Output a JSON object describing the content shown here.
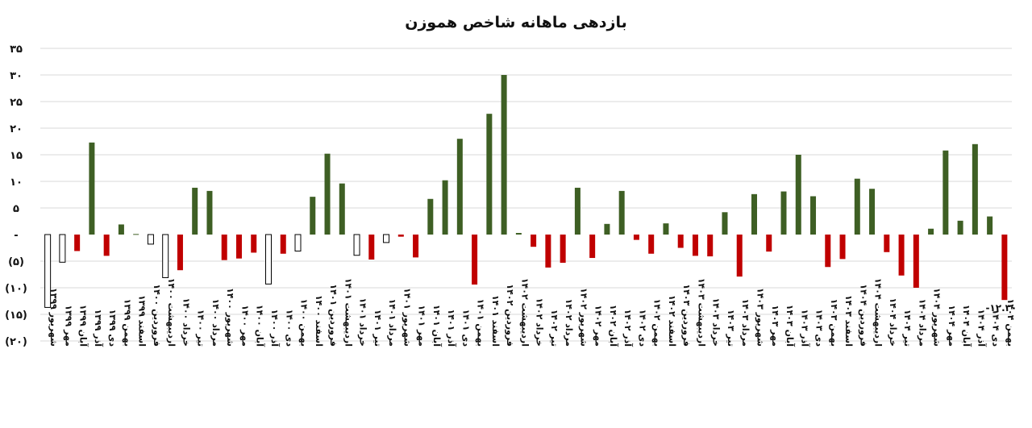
{
  "chart_data": {
    "type": "bar",
    "title": "بازدهی ماهانه شاخص هموزن",
    "ylim": [
      -20,
      35
    ],
    "yticks": [
      35,
      30,
      25,
      20,
      15,
      10,
      5,
      0,
      -5,
      -10,
      -15,
      -20
    ],
    "ytick_labels": [
      "۳۵",
      "۳۰",
      "۲۵",
      "۲۰",
      "۱۵",
      "۱۰",
      "۵",
      "-",
      "(۵)",
      "(۱۰)",
      "(۱۵)",
      "(۲۰)"
    ],
    "grid": true,
    "colors": {
      "positive": "#3e5f24",
      "negative": "#c00000",
      "outline": "#000000"
    },
    "categories": [
      "شهریور ۱۳۹۹",
      "مهر ۱۳۹۹",
      "آبان ۱۳۹۹",
      "آذر ۱۳۹۹",
      "دی ۱۳۹۹",
      "بهمن ۱۳۹۹",
      "اسفند ۱۳۹۹",
      "فروردین ۱۴۰۰",
      "اردیبهشت ۱۴۰۰",
      "خرداد ۱۴۰۰",
      "تیر ۱۴۰۰",
      "مرداد ۱۴۰۰",
      "شهریور ۱۴۰۰",
      "مهر ۱۴۰۰",
      "آبان ۱۴۰۰",
      "آذر ۱۴۰۰",
      "دی ۱۴۰۰",
      "بهمن ۱۴۰۰",
      "اسفند ۱۴۰۰",
      "فروردین ۱۴۰۱",
      "اردیبهشت ۱۴۰۱",
      "خرداد ۱۴۰۱",
      "تیر ۱۴۰۱",
      "مرداد ۱۴۰۱",
      "شهریور ۱۴۰۱",
      "مهر ۱۴۰۱",
      "آبان ۱۴۰۱",
      "آذر ۱۴۰۱",
      "دی ۱۴۰۱",
      "بهمن ۱۴۰۱",
      "اسفند ۱۴۰۱",
      "فروردین ۱۴۰۲",
      "اردیبهشت ۱۴۰۲",
      "خرداد ۱۴۰۲",
      "تیر ۱۴۰۲",
      "مرداد ۱۴۰۲",
      "شهریور ۱۴۰۲",
      "مهر ۱۴۰۲",
      "آبان ۱۴۰۲",
      "آذر ۱۴۰۲",
      "دی ۱۴۰۲",
      "بهمن ۱۴۰۲",
      "اسفند ۱۴۰۲",
      "فروردین ۱۴۰۳",
      "اردیبهشت ۱۴۰۳",
      "خرداد ۱۴۰۳",
      "تیر ۱۴۰۳",
      "مرداد ۱۴۰۳",
      "شهریور ۱۴۰۳",
      "مهر ۱۴۰۳",
      "آبان ۱۴۰۳",
      "آذر ۱۴۰۳",
      "دی ۱۴۰۳",
      "بهمن ۱۴۰۳",
      "اسفند ۱۴۰۳",
      "فروردین ۱۴۰۴",
      "اردیبهشت ۱۴۰۴",
      "خرداد ۱۴۰۴",
      "تیر ۱۴۰۴",
      "مرداد ۱۴۰۴",
      "شهریور ۱۴۰۴",
      "مهر ۱۴۰۴",
      "آبان ۱۴۰۴",
      "آذر ۱۴۰۴",
      "دی ۱۴۰۴",
      "بهمن ۱۴۰۴"
    ],
    "values": [
      -13.7,
      -5.2,
      -3.1,
      17.3,
      -4.0,
      1.9,
      0.1,
      -1.8,
      -8.1,
      -6.7,
      8.8,
      8.2,
      -4.8,
      -4.5,
      -3.4,
      -9.3,
      -3.6,
      -3.1,
      7.1,
      15.2,
      9.6,
      -3.9,
      -4.7,
      -1.5,
      -0.4,
      -4.3,
      6.7,
      10.2,
      18.0,
      -9.4,
      22.7,
      30.0,
      0.3,
      -2.3,
      -6.2,
      -5.3,
      8.8,
      -4.4,
      2.0,
      8.2,
      -1.0,
      -3.6,
      2.1,
      -2.5,
      -4.0,
      -4.1,
      4.2,
      -7.9,
      7.6,
      -3.2,
      8.1,
      15.0,
      7.2,
      -6.1,
      -4.6,
      10.5,
      8.6,
      -3.3,
      -7.7,
      -10.0,
      1.1,
      15.8,
      2.6,
      17.0,
      3.4,
      -12.3
    ],
    "outlined_bars": [
      0,
      1,
      7,
      8,
      15,
      17,
      21,
      23
    ],
    "data_labels": [
      {
        "index": 65,
        "text": "-۱۲.۳۰"
      }
    ]
  }
}
